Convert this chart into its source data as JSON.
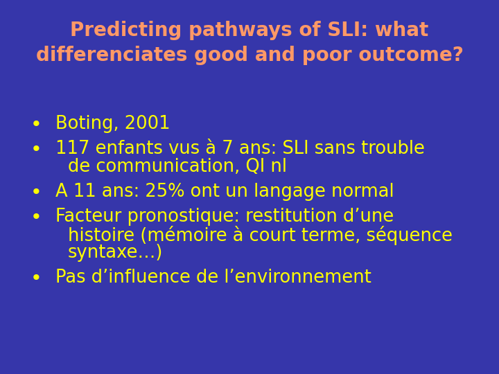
{
  "background_color": "#3636aa",
  "title_line1": "Predicting pathways of SLI: what",
  "title_line2": "differenciates good and poor outcome?",
  "title_color": "#ff9966",
  "title_fontsize": 20,
  "bullet_color": "#ffff00",
  "bullet_fontsize": 18.5,
  "bullet_items": [
    {
      "lines": [
        "Boting, 2001"
      ]
    },
    {
      "lines": [
        "117 enfants vus à 7 ans: SLI sans trouble",
        "de communication, QI nl"
      ]
    },
    {
      "lines": [
        "A 11 ans: 25% ont un langage normal"
      ]
    },
    {
      "lines": [
        "Facteur pronostique: restitution d’une",
        "histoire (mémoire à court terme, séquence",
        "syntaxe…)"
      ]
    },
    {
      "lines": [
        "Pas d’influence de l’environnement"
      ]
    }
  ],
  "figsize": [
    7.2,
    5.4
  ],
  "dpi": 100
}
